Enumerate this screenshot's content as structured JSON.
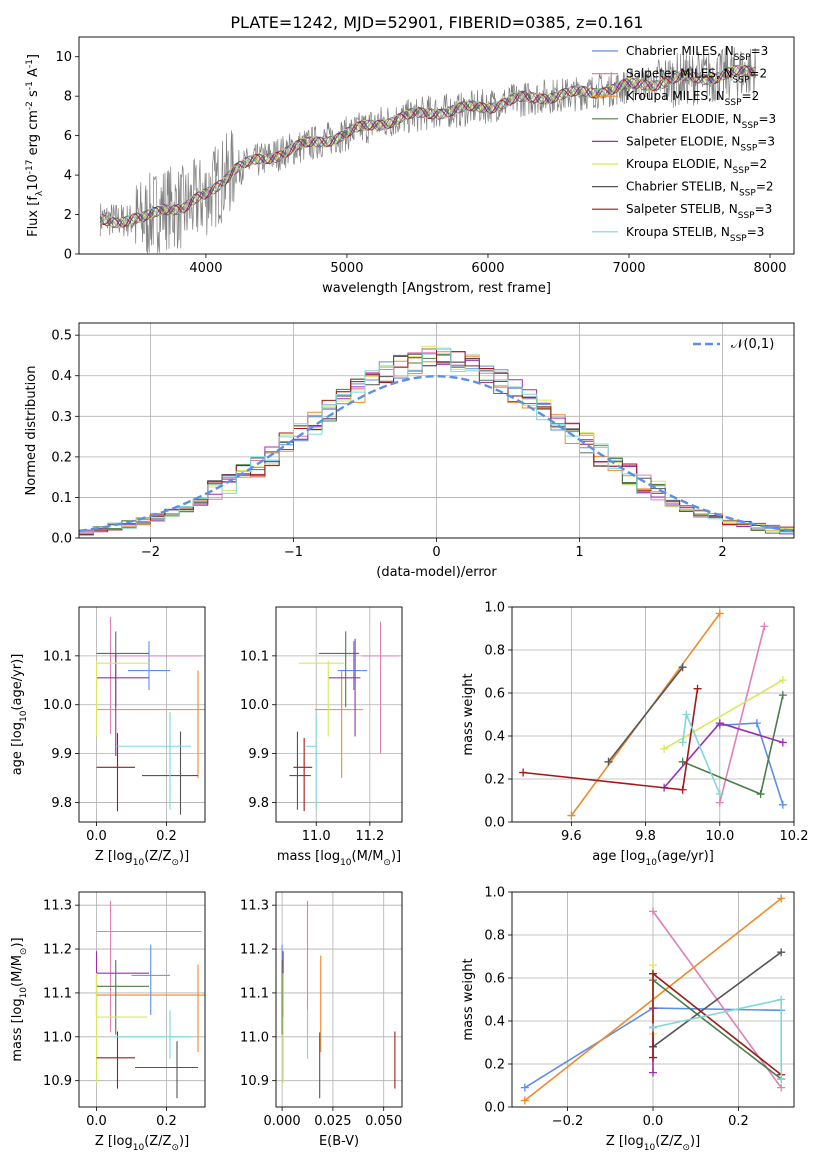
{
  "figure": {
    "title": "PLATE=1242, MJD=52901, FIBERID=0385, z=0.161"
  },
  "colors": {
    "Chabrier MILES": "#5b8fe8",
    "Salpeter MILES": "#e07fb8",
    "Kroupa MILES": "#f08a2c",
    "Chabrier ELODIE": "#4a7d4a",
    "Salpeter ELODIE": "#9b2fb0",
    "Kroupa ELODIE": "#d6e85a",
    "Chabrier STELIB": "#555555",
    "Salpeter STELIB": "#a01a1a",
    "Kroupa STELIB": "#7fd8d8"
  },
  "chart_data": [
    {
      "id": "spectrum",
      "type": "line",
      "xlabel": "wavelength [Angstrom, rest frame]",
      "ylabel": "Flux [f$_\\lambda$10$^{-17}$ erg cm$^{-2}$ s$^{-1}$ A$^{-1}$]",
      "xlim": [
        3100,
        8170
      ],
      "ylim": [
        0,
        11
      ],
      "xticks": [
        4000,
        5000,
        6000,
        7000,
        8000
      ],
      "yticks": [
        0,
        2,
        4,
        6,
        8,
        10
      ],
      "grid": false,
      "legend_position": "upper-right",
      "data_color": "#808080",
      "continuum": {
        "x": [
          3250,
          3400,
          3550,
          3700,
          3850,
          4000,
          4200,
          4400,
          4600,
          4800,
          5000,
          5200,
          5400,
          5600,
          5800,
          6000,
          6200,
          6400,
          6600,
          6800,
          7000,
          7200,
          7400,
          7600,
          7800,
          7900
        ],
        "y": [
          1.8,
          1.7,
          1.7,
          2.4,
          2.3,
          3.0,
          4.3,
          4.8,
          5.3,
          5.7,
          6.1,
          6.6,
          6.9,
          7.2,
          7.3,
          7.5,
          7.8,
          8.0,
          8.1,
          8.3,
          8.5,
          8.7,
          8.9,
          9.0,
          9.2,
          9.3
        ]
      },
      "legend": [
        {
          "model": "Chabrier MILES",
          "nssp": 3
        },
        {
          "model": "Salpeter MILES",
          "nssp": 2
        },
        {
          "model": "Kroupa MILES",
          "nssp": 2
        },
        {
          "model": "Chabrier ELODIE",
          "nssp": 3
        },
        {
          "model": "Salpeter ELODIE",
          "nssp": 3
        },
        {
          "model": "Kroupa ELODIE",
          "nssp": 2
        },
        {
          "model": "Chabrier STELIB",
          "nssp": 2
        },
        {
          "model": "Salpeter STELIB",
          "nssp": 3
        },
        {
          "model": "Kroupa STELIB",
          "nssp": 3
        }
      ],
      "legend_text_format": "{model}, N$_{SSP}$={nssp}"
    },
    {
      "id": "residual-hist",
      "type": "histogram",
      "xlabel": "(data-model)/error",
      "ylabel": "Normed distribution",
      "xlim": [
        -2.5,
        2.5
      ],
      "ylim": [
        0,
        0.53
      ],
      "xticks": [
        -2,
        -1,
        0,
        1,
        2
      ],
      "yticks": [
        0.0,
        0.1,
        0.2,
        0.3,
        0.4,
        0.5
      ],
      "grid": true,
      "bin_width": 0.1,
      "reference_curve": {
        "label": "$\\mathcal{N}(0,1)$",
        "mean": 0,
        "sigma": 1,
        "color": "#5b8fe8"
      },
      "legend_position": "upper-right"
    },
    {
      "id": "age-vs-Z",
      "type": "errorbar",
      "xlabel": "Z [log$_{10}$(Z/Z$_\\odot$)]",
      "ylabel": "age  [log$_{10}$(age/yr)]",
      "xlim": [
        -0.05,
        0.31
      ],
      "ylim": [
        9.76,
        10.2
      ],
      "xticks": [
        0.0,
        0.2
      ],
      "yticks": [
        9.8,
        9.9,
        10.0,
        10.1
      ],
      "grid": true,
      "points": [
        {
          "series": "Chabrier MILES",
          "x": 0.15,
          "y": 10.07,
          "xerr": [
            0.06,
            0.06
          ],
          "yerr": [
            0.04,
            0.06
          ]
        },
        {
          "series": "Salpeter MILES",
          "x": 0.04,
          "y": 10.1,
          "xerr": [
            0.0,
            0.26
          ],
          "yerr": [
            0.16,
            0.08
          ]
        },
        {
          "series": "Kroupa MILES",
          "x": 0.29,
          "y": 9.99,
          "xerr": [
            0.29,
            0.02
          ],
          "yerr": [
            0.14,
            0.08
          ]
        },
        {
          "series": "Chabrier ELODIE",
          "x": 0.055,
          "y": 10.105,
          "xerr": [
            0.055,
            0.095
          ],
          "yerr": [
            0.11,
            0.045
          ]
        },
        {
          "series": "Salpeter ELODIE",
          "x": 0.055,
          "y": 10.055,
          "xerr": [
            0.055,
            0.095
          ],
          "yerr": [
            0.16,
            0.05
          ]
        },
        {
          "series": "Kroupa ELODIE",
          "x": 0.0,
          "y": 10.085,
          "xerr": [
            0.0,
            0.15
          ],
          "yerr": [
            0.15,
            0.005
          ]
        },
        {
          "series": "Chabrier STELIB",
          "x": 0.24,
          "y": 9.855,
          "xerr": [
            0.11,
            0.05
          ],
          "yerr": [
            0.08,
            0.09
          ]
        },
        {
          "series": "Salpeter STELIB",
          "x": 0.06,
          "y": 9.872,
          "xerr": [
            0.06,
            0.05
          ],
          "yerr": [
            0.09,
            0.07
          ]
        },
        {
          "series": "Kroupa STELIB",
          "x": 0.21,
          "y": 9.915,
          "xerr": [
            0.15,
            0.06
          ],
          "yerr": [
            0.13,
            0.07
          ]
        }
      ]
    },
    {
      "id": "age-vs-mass",
      "type": "errorbar",
      "xlabel": "mass [log$_{10}$(M/M$_\\odot$)]",
      "ylabel": "",
      "xlim": [
        10.85,
        11.32
      ],
      "ylim": [
        9.76,
        10.2
      ],
      "xticks": [
        11.0,
        11.2
      ],
      "yticks": [
        9.8,
        9.9,
        10.0,
        10.1
      ],
      "grid": true,
      "points": [
        {
          "series": "Chabrier MILES",
          "x": 11.14,
          "y": 10.07,
          "xerr": [
            0.06,
            0.05
          ],
          "yerr": [
            0.04,
            0.06
          ]
        },
        {
          "series": "Salpeter MILES",
          "x": 11.24,
          "y": 10.1,
          "xerr": [
            0.07,
            0.07
          ],
          "yerr": [
            0.2,
            0.07
          ]
        },
        {
          "series": "Kroupa MILES",
          "x": 11.095,
          "y": 9.99,
          "xerr": [
            0.1,
            0.08
          ],
          "yerr": [
            0.14,
            0.08
          ]
        },
        {
          "series": "Chabrier ELODIE",
          "x": 11.11,
          "y": 10.105,
          "xerr": [
            0.1,
            0.05
          ],
          "yerr": [
            0.11,
            0.045
          ]
        },
        {
          "series": "Salpeter ELODIE",
          "x": 11.145,
          "y": 10.055,
          "xerr": [
            0.1,
            0.02
          ],
          "yerr": [
            0.12,
            0.08
          ]
        },
        {
          "series": "Kroupa ELODIE",
          "x": 11.045,
          "y": 10.085,
          "xerr": [
            0.11,
            0.06
          ],
          "yerr": [
            0.15,
            0.005
          ]
        },
        {
          "series": "Chabrier STELIB",
          "x": 10.93,
          "y": 9.855,
          "xerr": [
            0.03,
            0.05
          ],
          "yerr": [
            0.07,
            0.09
          ]
        },
        {
          "series": "Salpeter STELIB",
          "x": 10.955,
          "y": 9.872,
          "xerr": [
            0.04,
            0.03
          ],
          "yerr": [
            0.09,
            0.06
          ]
        },
        {
          "series": "Kroupa STELIB",
          "x": 11.0,
          "y": 9.915,
          "xerr": [
            0.04,
            0.0
          ],
          "yerr": [
            0.13,
            0.07
          ]
        }
      ]
    },
    {
      "id": "weight-vs-age",
      "type": "line",
      "xlabel": "age  [log$_{10}$(age/yr)]",
      "ylabel": "mass weight",
      "xlim": [
        9.44,
        10.2
      ],
      "ylim": [
        0,
        1
      ],
      "xticks": [
        9.6,
        9.8,
        10.0,
        10.2
      ],
      "yticks": [
        0.0,
        0.2,
        0.4,
        0.6,
        0.8,
        1.0
      ],
      "grid": true,
      "series": [
        {
          "name": "Chabrier MILES",
          "x": [
            10.0,
            10.1,
            10.17
          ],
          "y": [
            0.45,
            0.46,
            0.08
          ]
        },
        {
          "name": "Salpeter MILES",
          "x": [
            10.0,
            10.12
          ],
          "y": [
            0.09,
            0.91
          ]
        },
        {
          "name": "Kroupa MILES",
          "x": [
            9.6,
            10.0
          ],
          "y": [
            0.03,
            0.97
          ]
        },
        {
          "name": "Chabrier ELODIE",
          "x": [
            9.9,
            10.11,
            10.17
          ],
          "y": [
            0.28,
            0.13,
            0.59
          ]
        },
        {
          "name": "Salpeter ELODIE",
          "x": [
            9.85,
            10.0,
            10.17
          ],
          "y": [
            0.16,
            0.46,
            0.37
          ]
        },
        {
          "name": "Kroupa ELODIE",
          "x": [
            9.85,
            10.17
          ],
          "y": [
            0.34,
            0.66
          ]
        },
        {
          "name": "Chabrier STELIB",
          "x": [
            9.7,
            9.9
          ],
          "y": [
            0.28,
            0.72
          ]
        },
        {
          "name": "Salpeter STELIB",
          "x": [
            9.47,
            9.9,
            9.94
          ],
          "y": [
            0.23,
            0.15,
            0.62
          ]
        },
        {
          "name": "Kroupa STELIB",
          "x": [
            9.9,
            9.91,
            10.0
          ],
          "y": [
            0.37,
            0.5,
            0.13
          ]
        }
      ]
    },
    {
      "id": "mass-vs-Z",
      "type": "errorbar",
      "xlabel": "Z [log$_{10}$(Z/Z$_\\odot$)]",
      "ylabel": "mass [log$_{10}$(M/M$_\\odot$)]",
      "xlim": [
        -0.05,
        0.31
      ],
      "ylim": [
        10.84,
        11.33
      ],
      "xticks": [
        0.0,
        0.2
      ],
      "yticks": [
        10.9,
        11.0,
        11.1,
        11.2,
        11.3
      ],
      "grid": true,
      "points": [
        {
          "series": "Chabrier MILES",
          "x": 0.155,
          "y": 11.14,
          "xerr": [
            0.055,
            0.055
          ],
          "yerr": [
            0.09,
            0.07
          ]
        },
        {
          "series": "Salpeter MILES",
          "x": 0.04,
          "y": 11.24,
          "xerr": [
            0.04,
            0.26
          ],
          "yerr": [
            0.23,
            0.07
          ]
        },
        {
          "series": "Kroupa MILES",
          "x": 0.29,
          "y": 11.095,
          "xerr": [
            0.29,
            0.02
          ],
          "yerr": [
            0.13,
            0.07
          ]
        },
        {
          "series": "Chabrier ELODIE",
          "x": 0.055,
          "y": 11.115,
          "xerr": [
            0.055,
            0.095
          ],
          "yerr": [
            0.11,
            0.06
          ]
        },
        {
          "series": "Salpeter ELODIE",
          "x": 0.0,
          "y": 11.145,
          "xerr": [
            0.0,
            0.15
          ],
          "yerr": [
            0.1,
            0.05
          ]
        },
        {
          "series": "Kroupa ELODIE",
          "x": 0.0,
          "y": 11.045,
          "xerr": [
            0.0,
            0.145
          ],
          "yerr": [
            0.15,
            0.1
          ]
        },
        {
          "series": "Chabrier STELIB",
          "x": 0.23,
          "y": 10.93,
          "xerr": [
            0.12,
            0.06
          ],
          "yerr": [
            0.07,
            0.06
          ]
        },
        {
          "series": "Salpeter STELIB",
          "x": 0.06,
          "y": 10.952,
          "xerr": [
            0.06,
            0.05
          ],
          "yerr": [
            0.07,
            0.06
          ]
        },
        {
          "series": "Kroupa STELIB",
          "x": 0.21,
          "y": 11.0,
          "xerr": [
            0.16,
            0.06
          ],
          "yerr": [
            0.05,
            0.06
          ]
        }
      ]
    },
    {
      "id": "mass-vs-EBV",
      "type": "errorbar",
      "xlabel": "E(B-V)",
      "ylabel": "",
      "xlim": [
        -0.003,
        0.059
      ],
      "ylim": [
        10.84,
        11.33
      ],
      "xticks": [
        0.0,
        0.025,
        0.05
      ],
      "yticks": [
        10.9,
        11.0,
        11.1,
        11.2,
        11.3
      ],
      "grid": true,
      "points": [
        {
          "series": "Chabrier MILES",
          "x": 0.0,
          "y": 11.14,
          "xerr": [
            0,
            0
          ],
          "yerr": [
            0.09,
            0.07
          ]
        },
        {
          "series": "Salpeter MILES",
          "x": 0.0125,
          "y": 11.24,
          "xerr": [
            0,
            0
          ],
          "yerr": [
            0.23,
            0.07
          ]
        },
        {
          "series": "Kroupa MILES",
          "x": 0.019,
          "y": 11.095,
          "xerr": [
            0,
            0
          ],
          "yerr": [
            0.13,
            0.09
          ]
        },
        {
          "series": "Chabrier ELODIE",
          "x": 0.0,
          "y": 11.115,
          "xerr": [
            0,
            0
          ],
          "yerr": [
            0.11,
            0.06
          ]
        },
        {
          "series": "Salpeter ELODIE",
          "x": 0.0005,
          "y": 11.145,
          "xerr": [
            0,
            0
          ],
          "yerr": [
            0.1,
            0.05
          ]
        },
        {
          "series": "Kroupa ELODIE",
          "x": 0.0005,
          "y": 11.045,
          "xerr": [
            0,
            0
          ],
          "yerr": [
            0.15,
            0.1
          ]
        },
        {
          "series": "Chabrier STELIB",
          "x": 0.0185,
          "y": 10.93,
          "xerr": [
            0,
            0
          ],
          "yerr": [
            0.07,
            0.08
          ]
        },
        {
          "series": "Salpeter STELIB",
          "x": 0.0555,
          "y": 10.952,
          "xerr": [
            0,
            0
          ],
          "yerr": [
            0.07,
            0.06
          ]
        },
        {
          "series": "Kroupa STELIB",
          "x": 0.0125,
          "y": 11.0,
          "xerr": [
            0,
            0
          ],
          "yerr": [
            0.05,
            0.06
          ]
        }
      ]
    },
    {
      "id": "weight-vs-Z",
      "type": "line",
      "xlabel": "Z [log$_{10}$(Z/Z$_\\odot$)]",
      "ylabel": "mass weight",
      "xlim": [
        -0.33,
        0.33
      ],
      "ylim": [
        0,
        1
      ],
      "xticks": [
        -0.2,
        0.0,
        0.2
      ],
      "yticks": [
        0.0,
        0.2,
        0.4,
        0.6,
        0.8,
        1.0
      ],
      "grid": true,
      "series": [
        {
          "name": "Chabrier MILES",
          "x": [
            -0.3,
            0.0,
            0.3
          ],
          "y": [
            0.09,
            0.46,
            0.45
          ]
        },
        {
          "name": "Salpeter MILES",
          "x": [
            0.0,
            0.3
          ],
          "y": [
            0.91,
            0.09
          ]
        },
        {
          "name": "Kroupa MILES",
          "x": [
            -0.3,
            0.3
          ],
          "y": [
            0.03,
            0.97
          ]
        },
        {
          "name": "Chabrier ELODIE",
          "x": [
            0.0,
            0.0,
            0.3
          ],
          "y": [
            0.28,
            0.59,
            0.13
          ]
        },
        {
          "name": "Salpeter ELODIE",
          "x": [
            0.0,
            0.0,
            0.0
          ],
          "y": [
            0.16,
            0.37,
            0.46
          ]
        },
        {
          "name": "Kroupa ELODIE",
          "x": [
            0.0,
            0.0
          ],
          "y": [
            0.34,
            0.66
          ]
        },
        {
          "name": "Chabrier STELIB",
          "x": [
            0.0,
            0.3
          ],
          "y": [
            0.28,
            0.72
          ]
        },
        {
          "name": "Salpeter STELIB",
          "x": [
            0.0,
            0.0,
            0.3
          ],
          "y": [
            0.23,
            0.62,
            0.15
          ]
        },
        {
          "name": "Kroupa STELIB",
          "x": [
            0.0,
            0.3,
            0.3
          ],
          "y": [
            0.37,
            0.5,
            0.13
          ]
        }
      ]
    }
  ]
}
